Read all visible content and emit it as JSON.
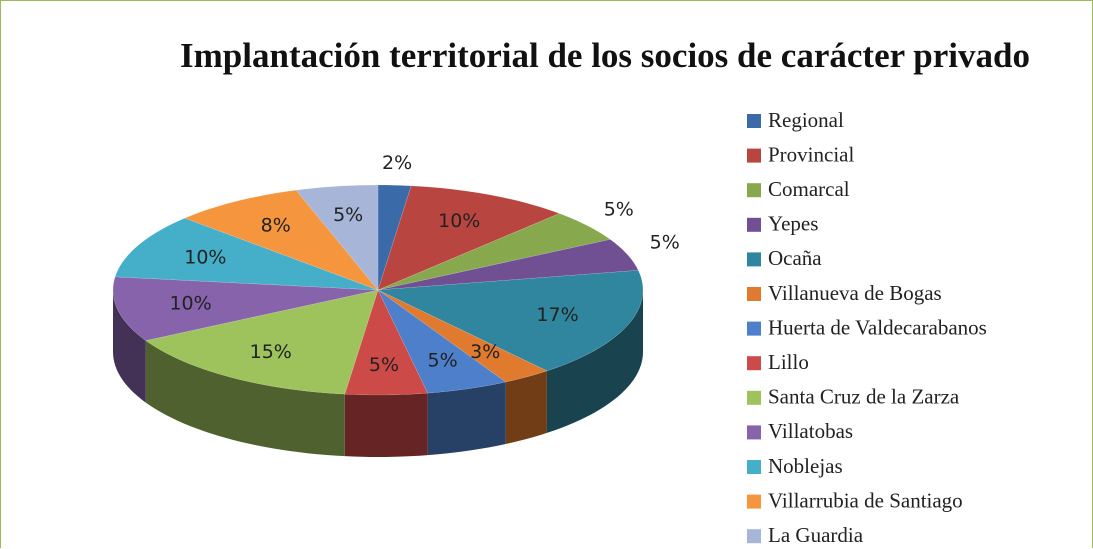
{
  "chart_data": {
    "type": "pie3d",
    "title": "Implantación territorial de los socios de carácter privado",
    "categories": [
      "Regional",
      "Provincial",
      "Comarcal",
      "Yepes",
      "Ocaña",
      "Villanueva de Bogas",
      "Huerta de Valdecarabanos",
      "Lillo",
      "Santa Cruz de la Zarza",
      "Villatobas",
      "Noblejas",
      "Villarrubia de Santiago",
      "La Guardia"
    ],
    "values": [
      2,
      10,
      5,
      5,
      17,
      3,
      5,
      5,
      15,
      10,
      10,
      8,
      5
    ],
    "value_labels": [
      "2%",
      "10%",
      "5%",
      "5%",
      "17%",
      "3%",
      "5%",
      "5%",
      "15%",
      "10%",
      "10%",
      "8%",
      "5%"
    ],
    "colors": [
      "#3b6aa8",
      "#b94541",
      "#88a84e",
      "#704f93",
      "#2f869e",
      "#e07a2e",
      "#4d7fcb",
      "#cc4a47",
      "#9ec25c",
      "#8663aa",
      "#45afca",
      "#f5963f",
      "#a7b5d8"
    ],
    "legend": "right"
  }
}
